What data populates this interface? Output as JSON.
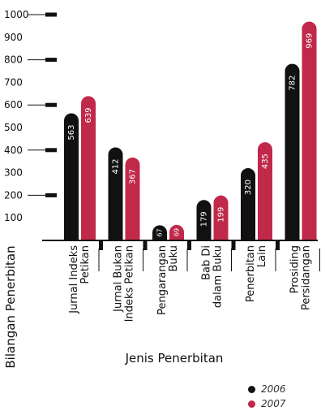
{
  "chart_data": {
    "type": "bar",
    "categories": [
      [
        "Jurnal Indeks",
        "Petikan"
      ],
      [
        "Jurnal Bukan",
        "Indeks Petikan"
      ],
      [
        "Pengarangan",
        "Buku"
      ],
      [
        "Bab Di",
        "dalam Buku"
      ],
      [
        "Penerbitan",
        "Lain"
      ],
      [
        "Prosiding",
        "Persidangan"
      ]
    ],
    "series": [
      {
        "name": "2006",
        "values": [
          563,
          412,
          67,
          179,
          320,
          782
        ],
        "color": "#111111"
      },
      {
        "name": "2007",
        "values": [
          639,
          367,
          69,
          199,
          435,
          969
        ],
        "color": "#c0294a"
      }
    ],
    "ylim": [
      0,
      1000
    ],
    "yticks": [
      1000,
      900,
      800,
      700,
      600,
      500,
      400,
      300,
      200,
      100
    ],
    "ylabel": "Bilangan Penerbitan",
    "xlabel": "Jenis Penerbitan",
    "legend_position": "bottom-right"
  }
}
